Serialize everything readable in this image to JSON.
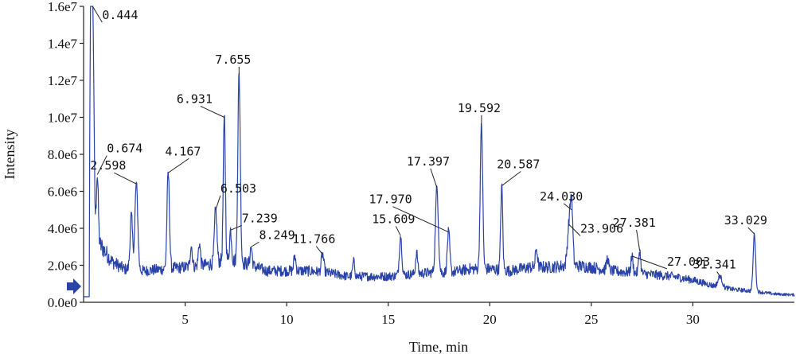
{
  "chart_data": {
    "type": "line",
    "title": "",
    "xlabel": "Time, min",
    "ylabel": "Intensity",
    "xlim": [
      0,
      35
    ],
    "ylim": [
      0,
      16000000
    ],
    "x_ticks": [
      {
        "value": 5,
        "label": "5"
      },
      {
        "value": 10,
        "label": "10"
      },
      {
        "value": 15,
        "label": "15"
      },
      {
        "value": 20,
        "label": "20"
      },
      {
        "value": 25,
        "label": "25"
      },
      {
        "value": 30,
        "label": "30"
      }
    ],
    "y_ticks": [
      {
        "value": 0,
        "label": "0.0e0"
      },
      {
        "value": 2000000,
        "label": "2.0e6"
      },
      {
        "value": 4000000,
        "label": "4.0e6"
      },
      {
        "value": 6000000,
        "label": "6.0e6"
      },
      {
        "value": 8000000,
        "label": "8.0e6"
      },
      {
        "value": 10000000,
        "label": "1.0e7"
      },
      {
        "value": 12000000,
        "label": "1.2e7"
      },
      {
        "value": 14000000,
        "label": "1.4e7"
      },
      {
        "value": 16000000,
        "label": "1.6e7"
      }
    ],
    "baseline": [
      [
        0,
        350000
      ],
      [
        0.3,
        400000
      ],
      [
        0.5,
        3200000
      ],
      [
        0.9,
        3000000
      ],
      [
        1.4,
        2200000
      ],
      [
        2.0,
        1800000
      ],
      [
        3.0,
        1700000
      ],
      [
        4.0,
        1800000
      ],
      [
        5.0,
        1900000
      ],
      [
        6.0,
        2000000
      ],
      [
        7.0,
        2300000
      ],
      [
        8.0,
        2100000
      ],
      [
        9.0,
        1700000
      ],
      [
        10.0,
        1700000
      ],
      [
        11.0,
        1700000
      ],
      [
        12.0,
        1600000
      ],
      [
        13.0,
        1400000
      ],
      [
        14.0,
        1400000
      ],
      [
        15.0,
        1400000
      ],
      [
        16.0,
        1500000
      ],
      [
        17.0,
        1600000
      ],
      [
        18.0,
        1600000
      ],
      [
        19.0,
        1800000
      ],
      [
        20.0,
        1800000
      ],
      [
        21.0,
        1700000
      ],
      [
        22.0,
        1900000
      ],
      [
        23.0,
        1900000
      ],
      [
        24.0,
        2000000
      ],
      [
        25.0,
        1900000
      ],
      [
        26.0,
        1700000
      ],
      [
        27.0,
        1600000
      ],
      [
        28.0,
        1500000
      ],
      [
        29.0,
        1400000
      ],
      [
        30.0,
        1200000
      ],
      [
        31.0,
        900000
      ],
      [
        32.0,
        700000
      ],
      [
        33.0,
        600000
      ],
      [
        34.0,
        450000
      ],
      [
        35.0,
        400000
      ]
    ],
    "peaks": [
      {
        "rt": 0.35,
        "intensity": 13500000,
        "width": 0.05
      },
      {
        "rt": 0.444,
        "intensity": 16000000,
        "width": 0.06,
        "label": "0.444"
      },
      {
        "rt": 0.674,
        "intensity": 6900000,
        "width": 0.05,
        "label": "0.674"
      },
      {
        "rt": 2.35,
        "intensity": 4700000,
        "width": 0.06
      },
      {
        "rt": 2.598,
        "intensity": 6400000,
        "width": 0.07,
        "label": "2.598"
      },
      {
        "rt": 4.167,
        "intensity": 7000000,
        "width": 0.06,
        "label": "4.167"
      },
      {
        "rt": 5.3,
        "intensity": 3100000,
        "width": 0.05
      },
      {
        "rt": 5.7,
        "intensity": 3200000,
        "width": 0.05
      },
      {
        "rt": 6.503,
        "intensity": 5000000,
        "width": 0.06,
        "label": "6.503"
      },
      {
        "rt": 6.931,
        "intensity": 10000000,
        "width": 0.05,
        "label": "6.931"
      },
      {
        "rt": 7.239,
        "intensity": 3900000,
        "width": 0.05,
        "label": "7.239"
      },
      {
        "rt": 7.655,
        "intensity": 12300000,
        "width": 0.06,
        "label": "7.655"
      },
      {
        "rt": 8.249,
        "intensity": 3000000,
        "width": 0.05,
        "label": "8.249"
      },
      {
        "rt": 10.4,
        "intensity": 2500000,
        "width": 0.05
      },
      {
        "rt": 11.766,
        "intensity": 2600000,
        "width": 0.06,
        "label": "11.766"
      },
      {
        "rt": 13.3,
        "intensity": 2200000,
        "width": 0.05
      },
      {
        "rt": 15.609,
        "intensity": 3600000,
        "width": 0.06,
        "label": "15.609"
      },
      {
        "rt": 16.4,
        "intensity": 2700000,
        "width": 0.05
      },
      {
        "rt": 17.397,
        "intensity": 6200000,
        "width": 0.07,
        "label": "17.397"
      },
      {
        "rt": 17.97,
        "intensity": 3800000,
        "width": 0.06,
        "label": "17.970"
      },
      {
        "rt": 19.592,
        "intensity": 9600000,
        "width": 0.06,
        "label": "19.592"
      },
      {
        "rt": 20.587,
        "intensity": 6300000,
        "width": 0.05,
        "label": "20.587"
      },
      {
        "rt": 22.3,
        "intensity": 2900000,
        "width": 0.05
      },
      {
        "rt": 23.906,
        "intensity": 4200000,
        "width": 0.08,
        "label": "23.906"
      },
      {
        "rt": 24.03,
        "intensity": 5000000,
        "width": 0.06,
        "label": "24.030"
      },
      {
        "rt": 25.8,
        "intensity": 2400000,
        "width": 0.05
      },
      {
        "rt": 27.003,
        "intensity": 2500000,
        "width": 0.05,
        "label": "27.003"
      },
      {
        "rt": 27.381,
        "intensity": 2800000,
        "width": 0.05,
        "label": "27.381"
      },
      {
        "rt": 31.341,
        "intensity": 1400000,
        "width": 0.1,
        "label": "31.341"
      },
      {
        "rt": 33.029,
        "intensity": 3700000,
        "width": 0.06,
        "label": "33.029"
      }
    ],
    "peak_label_offsets": {
      "0.444": [
        12,
        16
      ],
      "0.674": [
        12,
        -28
      ],
      "2.598": [
        -58,
        -18
      ],
      "4.167": [
        -4,
        -22
      ],
      "6.503": [
        6,
        -22
      ],
      "6.931": [
        -60,
        -18
      ],
      "7.239": [
        14,
        -10
      ],
      "7.655": [
        -30,
        -14
      ],
      "8.249": [
        10,
        -10
      ],
      "11.766": [
        -38,
        -14
      ],
      "15.609": [
        -36,
        -16
      ],
      "17.397": [
        -38,
        -28
      ],
      "17.970": [
        -100,
        -36
      ],
      "19.592": [
        -30,
        -16
      ],
      "20.587": [
        -6,
        -22
      ],
      "23.906": [
        14,
        10
      ],
      "24.030": [
        -40,
        -12
      ],
      "27.003": [
        44,
        12
      ],
      "27.381": [
        -34,
        -30
      ],
      "31.341": [
        -34,
        -10
      ],
      "33.029": [
        -38,
        -12
      ]
    },
    "legend": [],
    "marker": "solvent-front-arrow"
  }
}
